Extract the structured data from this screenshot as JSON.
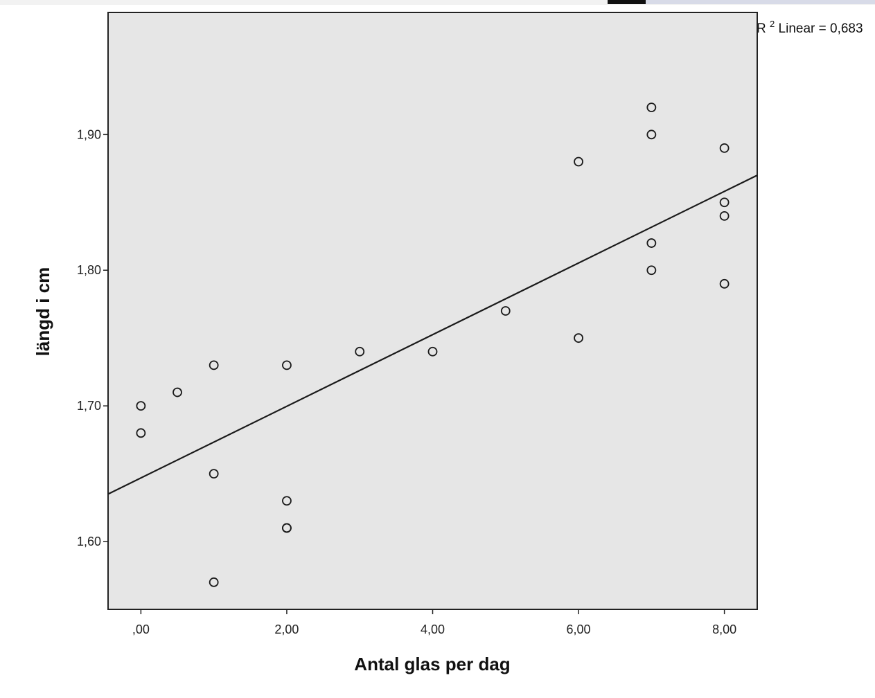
{
  "chart_data": {
    "type": "scatter",
    "title": "",
    "xlabel": "Antal glas per dag",
    "ylabel": "längd i cm",
    "xlim": [
      -0.45,
      8.45
    ],
    "ylim": [
      1.55,
      1.99
    ],
    "x_ticks": [
      0,
      2,
      4,
      6,
      8
    ],
    "x_tick_labels": [
      ",00",
      "2,00",
      "4,00",
      "6,00",
      "8,00"
    ],
    "y_ticks": [
      1.6,
      1.7,
      1.8,
      1.9
    ],
    "y_tick_labels": [
      "1,60",
      "1,70",
      "1,80",
      "1,90"
    ],
    "grid": false,
    "background": "#e6e6e6",
    "marker": "open-circle",
    "series": [
      {
        "x": [
          0,
          0,
          0.5,
          1,
          1,
          1,
          2,
          2,
          2,
          2,
          3,
          4,
          5,
          6,
          6,
          7,
          7,
          7,
          7,
          8,
          8,
          8,
          8
        ],
        "y": [
          1.7,
          1.68,
          1.71,
          1.73,
          1.65,
          1.57,
          1.73,
          1.63,
          1.61,
          1.61,
          1.74,
          1.74,
          1.77,
          1.88,
          1.75,
          1.92,
          1.9,
          1.82,
          1.8,
          1.89,
          1.85,
          1.84,
          1.79
        ]
      }
    ],
    "fit_line": {
      "type": "linear",
      "x": [
        -0.45,
        8.45
      ],
      "y": [
        1.635,
        1.87
      ]
    },
    "annotation": {
      "r2_prefix": "R",
      "r2_superscript": "2",
      "r2_text": " Linear = 0,683"
    }
  }
}
